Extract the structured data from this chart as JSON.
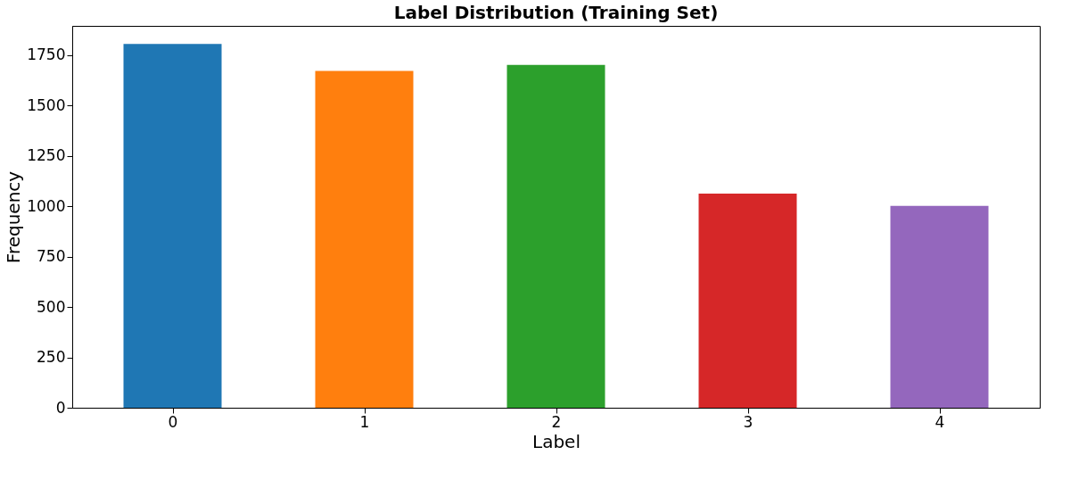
{
  "chart_data": {
    "type": "bar",
    "title": "Label Distribution (Training Set)",
    "xlabel": "Label",
    "ylabel": "Frequency",
    "categories": [
      "0",
      "1",
      "2",
      "3",
      "4"
    ],
    "values": [
      1806,
      1672,
      1702,
      1063,
      1002
    ],
    "colors": [
      "#1f77b4",
      "#ff7f0e",
      "#2ca02c",
      "#d62728",
      "#9467bd"
    ],
    "ylim": [
      0,
      1896
    ],
    "yticks": [
      0,
      250,
      500,
      750,
      1000,
      1250,
      1500,
      1750
    ],
    "grid": false,
    "legend": false
  }
}
